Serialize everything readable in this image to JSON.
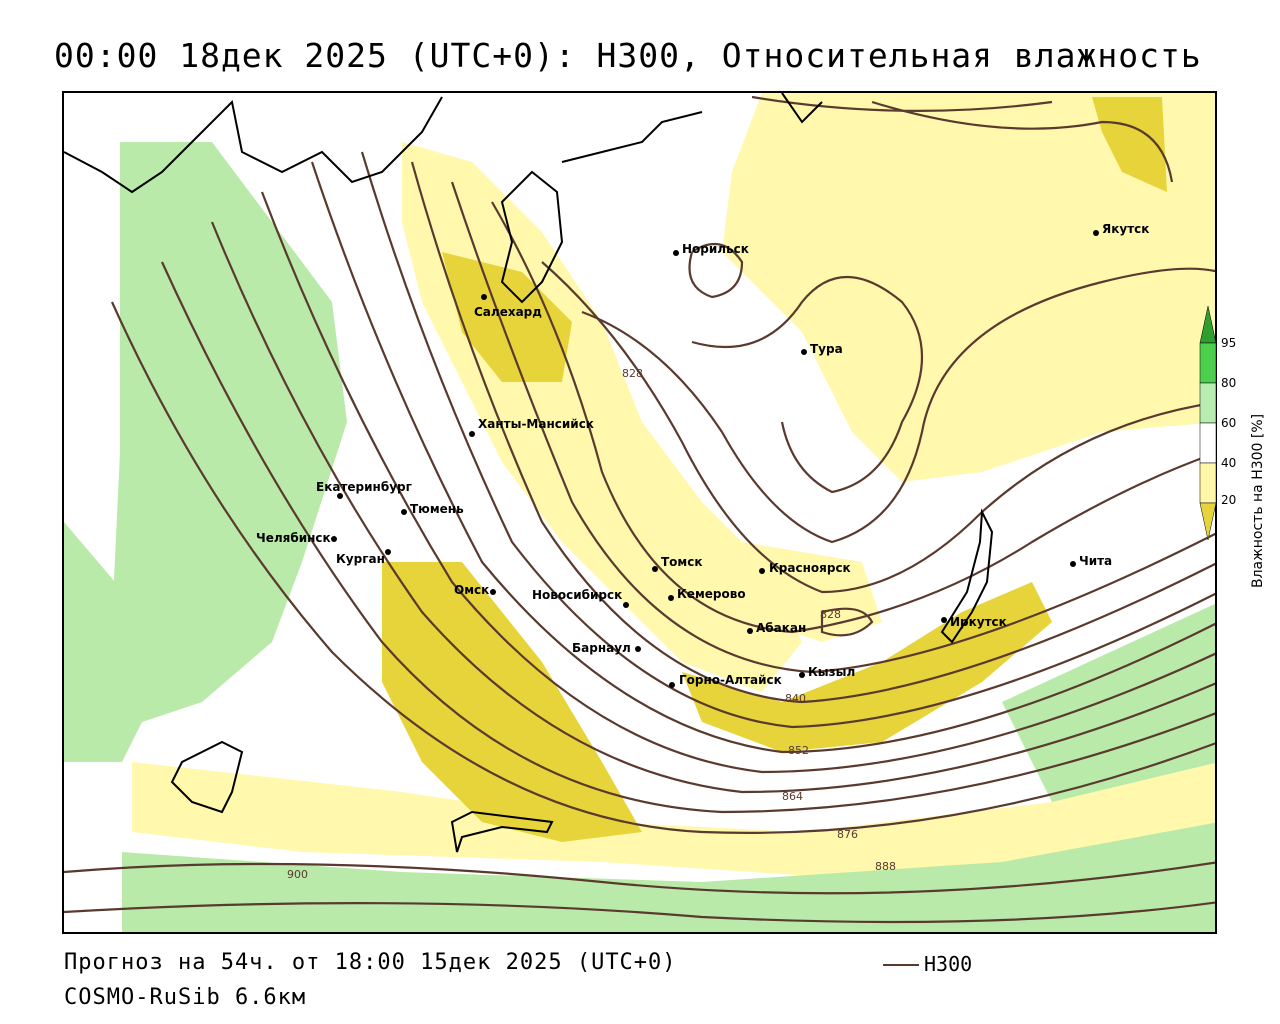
{
  "title": "00:00 18дек 2025 (UTC+0): H300, Относительная влажность",
  "footer": {
    "forecast": "Прогноз на 54ч. от 18:00 15дек 2025 (UTC+0)",
    "model": "COSMO-RuSib 6.6км"
  },
  "legend": {
    "line_label": "H300",
    "line_color": "#5a3a2e"
  },
  "colorbar": {
    "title": "Влажность на H300 [%]",
    "ticks": [
      "95",
      "80",
      "60",
      "40",
      "20"
    ],
    "colors": [
      "#2e9e2e",
      "#4ccf4c",
      "#b8ecb0",
      "#ffffff",
      "#fff7a8"
    ]
  },
  "fill_colors": {
    "light_yellow": "#fff8ad",
    "dark_yellow": "#e6d43a",
    "light_green": "#b9eaa9",
    "green": "#6dd46a"
  },
  "cities": [
    {
      "name": "Якутск"
    },
    {
      "name": "Норильск"
    },
    {
      "name": "Салехард"
    },
    {
      "name": "Тура"
    },
    {
      "name": "Ханты-Мансийск"
    },
    {
      "name": "Екатеринбург"
    },
    {
      "name": "Тюмень"
    },
    {
      "name": "Челябинск"
    },
    {
      "name": "Курган"
    },
    {
      "name": "Омск"
    },
    {
      "name": "Новосибирск"
    },
    {
      "name": "Томск"
    },
    {
      "name": "Кемерово"
    },
    {
      "name": "Красноярск"
    },
    {
      "name": "Абакан"
    },
    {
      "name": "Барнаул"
    },
    {
      "name": "Горно-Алтайск"
    },
    {
      "name": "Кызыл"
    },
    {
      "name": "Иркутск"
    },
    {
      "name": "Чита"
    }
  ],
  "contour_labels": [
    "828",
    "828",
    "840",
    "852",
    "864",
    "876",
    "888",
    "900"
  ]
}
